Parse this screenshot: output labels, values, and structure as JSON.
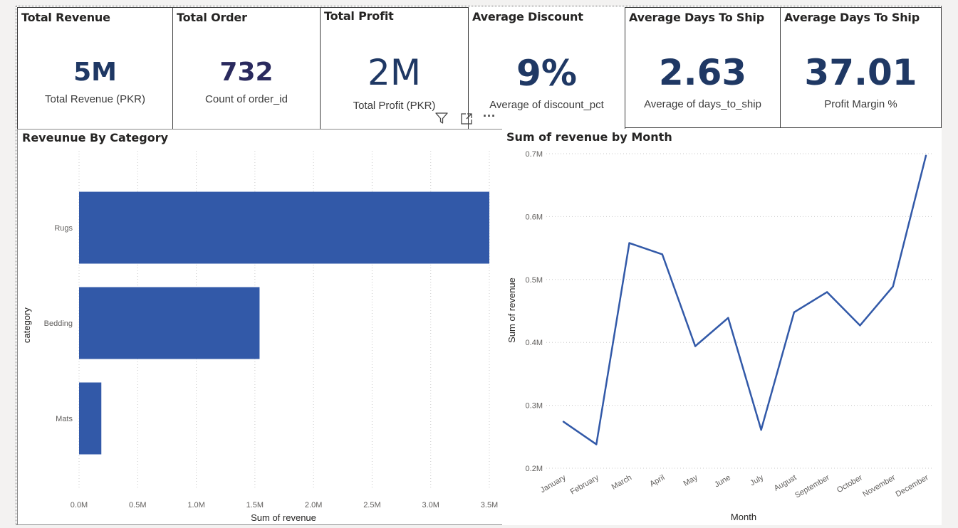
{
  "cards": [
    {
      "title": "Total Revenue",
      "value": "5M",
      "label": "Total Revenue (PKR)"
    },
    {
      "title": "Total Order",
      "value": "732",
      "label": "Count of order_id"
    },
    {
      "title": "Total Profit",
      "value": "2M",
      "label": "Total Profit (PKR)"
    },
    {
      "title": "Average Discount",
      "value": "9%",
      "label": "Average of discount_pct"
    },
    {
      "title": "Average Days To Ship",
      "value": "2.63",
      "label": "Average of days_to_ship"
    },
    {
      "title": "Average Days To Ship",
      "value": "37.01",
      "label": "Profit Margin %"
    }
  ],
  "visual_header": {
    "icons": [
      "filter-icon",
      "focus-mode-icon",
      "more-options-icon"
    ],
    "more_glyph": "···"
  },
  "chart_data": [
    {
      "type": "bar",
      "orientation": "horizontal",
      "title": "Reveunue By Category",
      "xlabel": "Sum of revenue",
      "ylabel": "category",
      "categories": [
        "Rugs",
        "Bedding",
        "Mats"
      ],
      "values": [
        3.5,
        1.54,
        0.19
      ],
      "value_unit": "M",
      "xlim": [
        0,
        3.5
      ],
      "x_ticks": [
        0,
        0.5,
        1,
        1.5,
        2,
        2.5,
        3,
        3.5
      ],
      "x_tick_labels": [
        "0.0M",
        "0.5M",
        "1.0M",
        "1.5M",
        "2.0M",
        "2.5M",
        "3.0M",
        "3.5M"
      ],
      "grid": "vertical-dotted",
      "bar_color": "#3259a8"
    },
    {
      "type": "line",
      "title": "Sum of revenue by Month",
      "xlabel": "Month",
      "ylabel": "Sum of revenue",
      "categories": [
        "January",
        "February",
        "March",
        "April",
        "May",
        "June",
        "July",
        "August",
        "September",
        "October",
        "November",
        "December"
      ],
      "values": [
        0.274,
        0.238,
        0.558,
        0.54,
        0.394,
        0.439,
        0.261,
        0.448,
        0.48,
        0.427,
        0.489,
        0.697
      ],
      "value_unit": "M",
      "ylim": [
        0.2,
        0.7
      ],
      "y_ticks": [
        0.2,
        0.3,
        0.4,
        0.5,
        0.6,
        0.7
      ],
      "y_tick_labels": [
        "0.2M",
        "0.3M",
        "0.4M",
        "0.5M",
        "0.6M",
        "0.7M"
      ],
      "grid": "horizontal-dotted",
      "line_color": "#3259a8"
    }
  ]
}
